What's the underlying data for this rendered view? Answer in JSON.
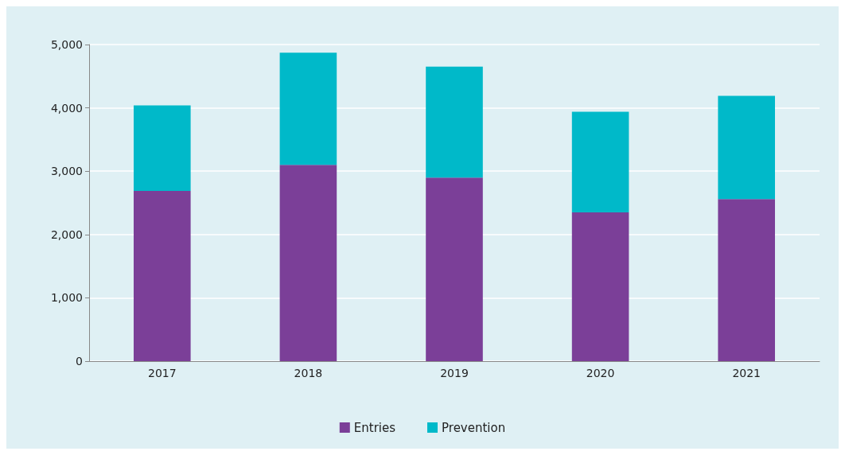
{
  "chart_data": {
    "type": "bar",
    "stacked": true,
    "categories": [
      "2017",
      "2018",
      "2019",
      "2020",
      "2021"
    ],
    "series": [
      {
        "name": "Entries",
        "color": "#7b3f98",
        "values": [
          2690,
          3100,
          2900,
          2350,
          2560
        ]
      },
      {
        "name": "Prevention",
        "color": "#00b9c9",
        "values": [
          1350,
          1770,
          1750,
          1590,
          1630
        ]
      }
    ],
    "ylim": [
      0,
      5000
    ],
    "yticks": [
      0,
      {
        "value": 1000,
        "label": "1,000"
      },
      {
        "value": 2000,
        "label": "2,000"
      },
      {
        "value": 3000,
        "label": "3,000"
      },
      {
        "value": 4000,
        "label": "4,000"
      },
      {
        "value": 5000,
        "label": "5,000"
      }
    ],
    "grid": "y",
    "legend": "bottom"
  }
}
